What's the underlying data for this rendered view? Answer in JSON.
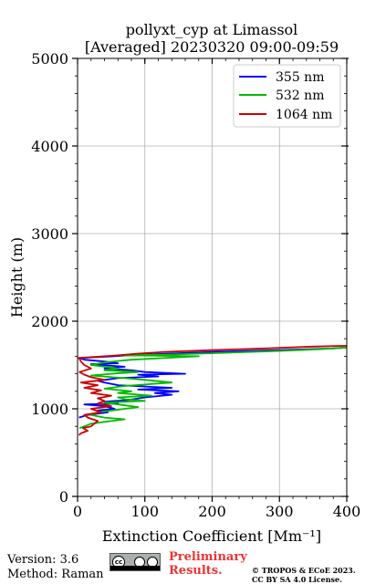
{
  "chart_data": {
    "type": "line",
    "title_line1": "pollyxt_cyp at Limassol",
    "title_line2": "[Averaged] 20230320 09:00-09:59",
    "xlabel": "Extinction Coefficient [Mm⁻¹]",
    "ylabel": "Height (m)",
    "xlim": [
      0,
      400
    ],
    "ylim": [
      0,
      5000
    ],
    "xticks": [
      0,
      100,
      200,
      300,
      400
    ],
    "yticks": [
      0,
      1000,
      2000,
      3000,
      4000,
      5000
    ],
    "grid": true,
    "legend_position": "top-right",
    "series": [
      {
        "name": "355 nm",
        "color": "#0000ff",
        "points": [
          [
            2,
            900
          ],
          [
            15,
            930
          ],
          [
            45,
            960
          ],
          [
            30,
            980
          ],
          [
            55,
            1000
          ],
          [
            40,
            1030
          ],
          [
            10,
            1050
          ],
          [
            60,
            1060
          ],
          [
            40,
            1080
          ],
          [
            75,
            1100
          ],
          [
            100,
            1130
          ],
          [
            140,
            1160
          ],
          [
            115,
            1180
          ],
          [
            150,
            1200
          ],
          [
            90,
            1220
          ],
          [
            140,
            1240
          ],
          [
            60,
            1270
          ],
          [
            40,
            1300
          ],
          [
            30,
            1320
          ],
          [
            60,
            1350
          ],
          [
            120,
            1370
          ],
          [
            90,
            1390
          ],
          [
            160,
            1400
          ],
          [
            100,
            1420
          ],
          [
            80,
            1440
          ],
          [
            40,
            1460
          ],
          [
            70,
            1480
          ],
          [
            20,
            1510
          ],
          [
            60,
            1520
          ],
          [
            40,
            1540
          ],
          [
            10,
            1560
          ],
          [
            2,
            1580
          ],
          [
            30,
            1590
          ],
          [
            100,
            1620
          ],
          [
            200,
            1650
          ],
          [
            300,
            1670
          ],
          [
            380,
            1690
          ],
          [
            400,
            1700
          ]
        ]
      },
      {
        "name": "532 nm",
        "color": "#00bb00",
        "points": [
          [
            3,
            780
          ],
          [
            10,
            800
          ],
          [
            20,
            830
          ],
          [
            50,
            860
          ],
          [
            70,
            880
          ],
          [
            40,
            900
          ],
          [
            20,
            930
          ],
          [
            30,
            960
          ],
          [
            60,
            990
          ],
          [
            90,
            1020
          ],
          [
            60,
            1050
          ],
          [
            40,
            1070
          ],
          [
            100,
            1090
          ],
          [
            70,
            1110
          ],
          [
            60,
            1130
          ],
          [
            110,
            1150
          ],
          [
            60,
            1180
          ],
          [
            80,
            1200
          ],
          [
            40,
            1230
          ],
          [
            70,
            1260
          ],
          [
            140,
            1300
          ],
          [
            100,
            1330
          ],
          [
            70,
            1350
          ],
          [
            20,
            1380
          ],
          [
            50,
            1400
          ],
          [
            90,
            1420
          ],
          [
            40,
            1440
          ],
          [
            60,
            1460
          ],
          [
            20,
            1500
          ],
          [
            40,
            1530
          ],
          [
            80,
            1560
          ],
          [
            180,
            1600
          ],
          [
            60,
            1610
          ],
          [
            140,
            1620
          ],
          [
            220,
            1640
          ],
          [
            300,
            1660
          ],
          [
            360,
            1680
          ],
          [
            400,
            1700
          ]
        ]
      },
      {
        "name": "1064 nm",
        "color": "#cc0000",
        "points": [
          [
            2,
            700
          ],
          [
            5,
            720
          ],
          [
            15,
            750
          ],
          [
            8,
            780
          ],
          [
            20,
            800
          ],
          [
            25,
            830
          ],
          [
            30,
            860
          ],
          [
            15,
            900
          ],
          [
            10,
            930
          ],
          [
            35,
            960
          ],
          [
            20,
            1000
          ],
          [
            50,
            1030
          ],
          [
            30,
            1060
          ],
          [
            40,
            1090
          ],
          [
            30,
            1120
          ],
          [
            50,
            1150
          ],
          [
            20,
            1180
          ],
          [
            35,
            1210
          ],
          [
            10,
            1240
          ],
          [
            30,
            1270
          ],
          [
            5,
            1300
          ],
          [
            40,
            1330
          ],
          [
            20,
            1360
          ],
          [
            10,
            1390
          ],
          [
            3,
            1420
          ],
          [
            20,
            1460
          ],
          [
            10,
            1500
          ],
          [
            5,
            1540
          ],
          [
            2,
            1580
          ],
          [
            60,
            1610
          ],
          [
            90,
            1630
          ],
          [
            130,
            1650
          ],
          [
            200,
            1670
          ],
          [
            280,
            1690
          ],
          [
            350,
            1710
          ],
          [
            400,
            1720
          ]
        ]
      }
    ]
  },
  "footer": {
    "version": "Version: 3.6",
    "method": "Method: Raman",
    "preliminary_line1": "Preliminary",
    "preliminary_line2": "Results.",
    "copyright_line1": "© TROPOS & ECoE 2023.",
    "copyright_line2": "CC BY SA 4.0 License."
  }
}
